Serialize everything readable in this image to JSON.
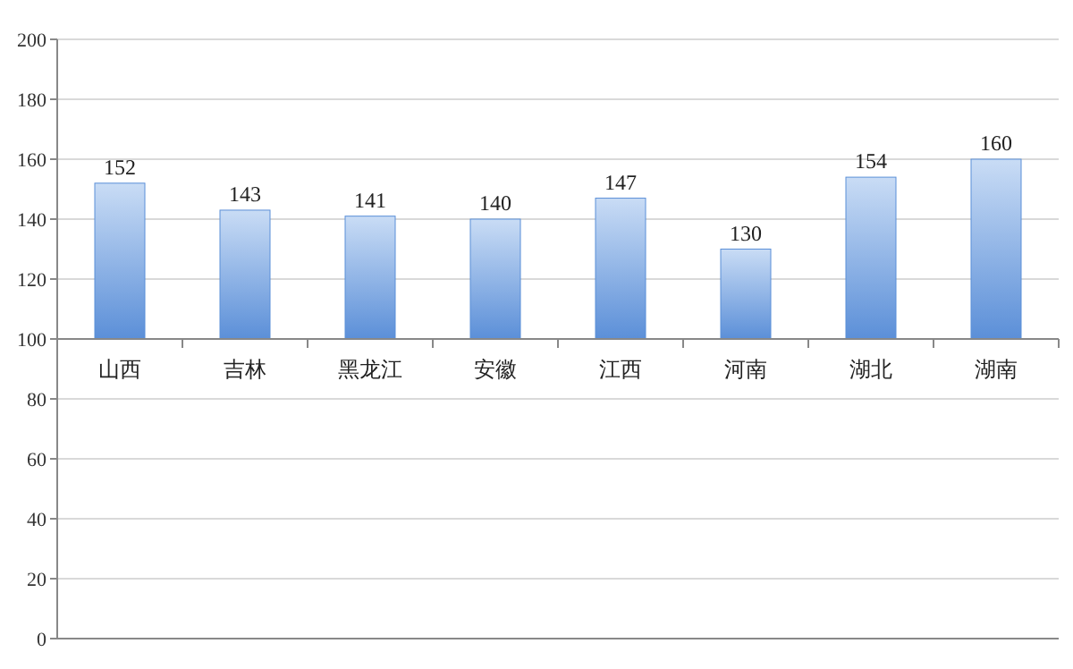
{
  "chart_data": {
    "type": "bar",
    "categories": [
      "山西",
      "吉林",
      "黑龙江",
      "安徽",
      "江西",
      "河南",
      "湖北",
      "湖南"
    ],
    "values": [
      52,
      43,
      41,
      40,
      47,
      30,
      54,
      60
    ],
    "base": [
      100,
      100,
      100,
      100,
      100,
      100,
      100,
      100
    ],
    "value_labels": [
      "152",
      "143",
      "141",
      "140",
      "147",
      "130",
      "154",
      "160"
    ],
    "color": "#5b8fd8",
    "ylim": [
      0,
      200
    ],
    "yticks": [
      0,
      20,
      40,
      60,
      80,
      100,
      120,
      140,
      160,
      180,
      200
    ],
    "grid": "y"
  }
}
